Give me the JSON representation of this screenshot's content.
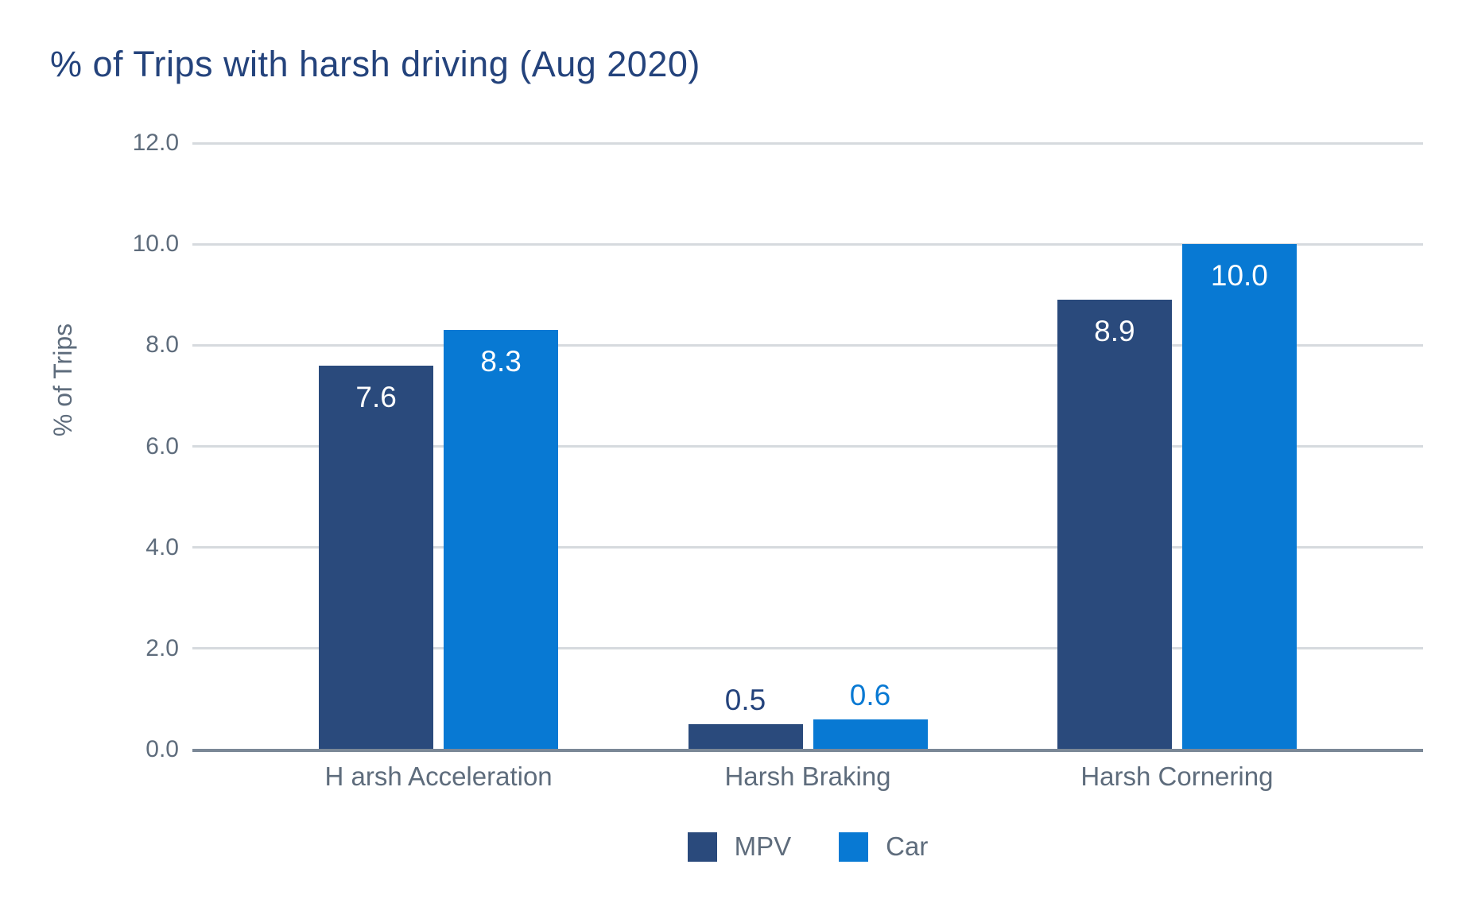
{
  "chart_data": {
    "type": "bar",
    "title": "% of Trips with harsh driving (Aug 2020)",
    "categories": [
      "H arsh Acceleration",
      "Harsh Braking",
      "Harsh Cornering"
    ],
    "series": [
      {
        "name": "MPV",
        "color": "#2a4a7c",
        "outside_label_color": "#24437c",
        "values": [
          7.6,
          0.5,
          8.9
        ],
        "labels": [
          "7.6",
          "0.5",
          "8.9"
        ]
      },
      {
        "name": "Car",
        "color": "#0879d3",
        "outside_label_color": "#0879d3",
        "values": [
          8.3,
          0.6,
          10.0
        ],
        "labels": [
          "8.3",
          "0.6",
          "10.0"
        ]
      }
    ],
    "ylabel": "% of Trips",
    "xlabel": "",
    "ylim": [
      0,
      12
    ],
    "yticks": [
      "12.0",
      "10.0",
      "8.0",
      "6.0",
      "4.0",
      "2.0",
      "0.0"
    ],
    "grid": true,
    "legend_position": "bottom",
    "legend": [
      "MPV",
      "Car"
    ],
    "colors": {
      "title_text": "#24437c",
      "tick_text": "#5e6c7c",
      "gridline": "#d6dade",
      "axis_line": "#7b8897",
      "inside_value_text": "#ffffff",
      "background": "#ffffff"
    }
  }
}
